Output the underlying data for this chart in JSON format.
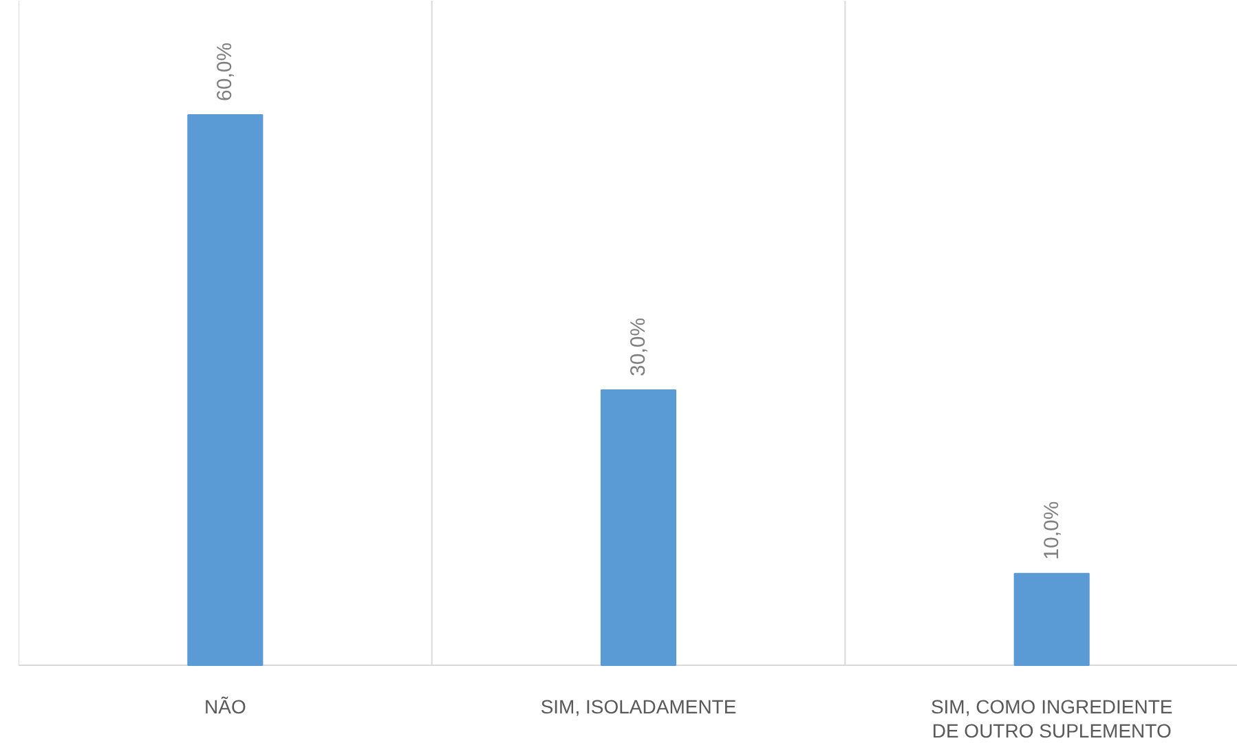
{
  "chart_data": {
    "type": "bar",
    "categories": [
      "NÃO",
      "SIM, ISOLADAMENTE",
      "SIM, COMO INGREDIENTE DE OUTRO SUPLEMENTO"
    ],
    "values": [
      60,
      30,
      10
    ],
    "value_labels": [
      "60,0%",
      "30,0%",
      "10,0%"
    ],
    "color": "#5b9bd5",
    "grid": "x"
  }
}
